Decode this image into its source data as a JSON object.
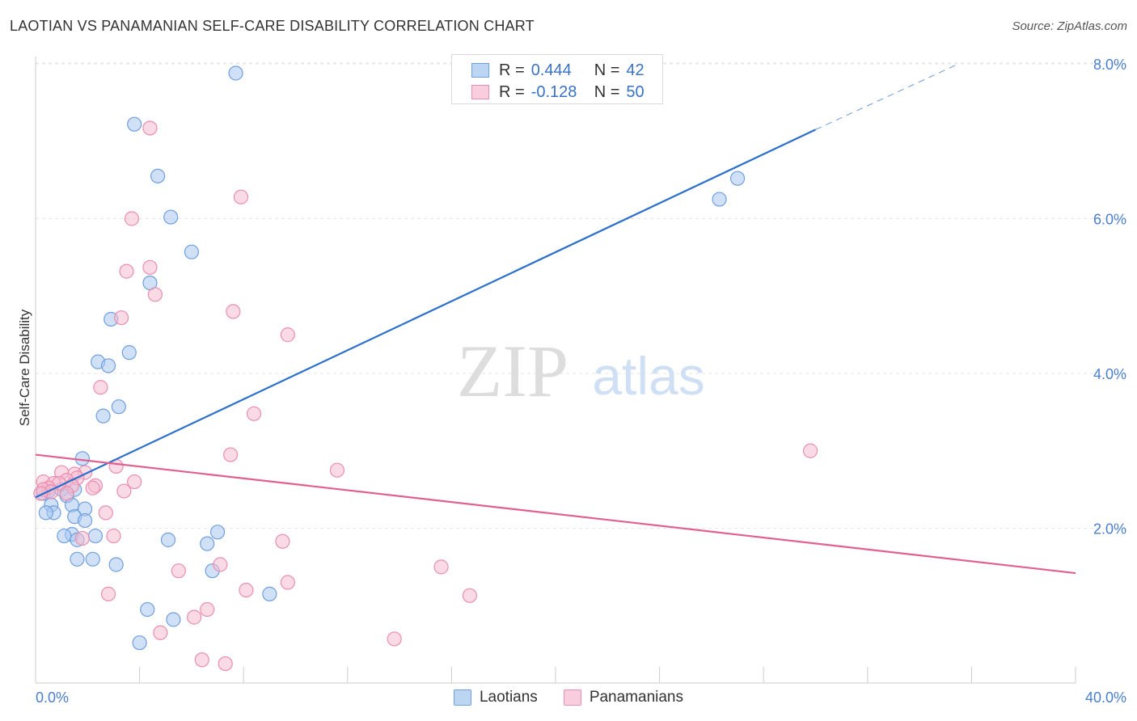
{
  "header": {
    "title": "LAOTIAN VS PANAMANIAN SELF-CARE DISABILITY CORRELATION CHART",
    "source": "Source: ZipAtlas.com"
  },
  "watermark": {
    "zip": "ZIP",
    "atlas": "atlas"
  },
  "colors": {
    "blue_fill": "#a9c8f0",
    "blue_stroke": "#6f9fe0",
    "blue_line": "#2a6fcc",
    "pink_fill": "#f6bcd0",
    "pink_stroke": "#eb8db0",
    "pink_line": "#e0608f",
    "axis_label": "#4a7fcf",
    "grid": "#e6e6e6"
  },
  "legend_top": [
    {
      "r_key": "R =",
      "r_value": "0.444",
      "n_key": "N =",
      "n_value": "42"
    },
    {
      "r_key": "R =",
      "r_value": "-0.128",
      "n_key": "N =",
      "n_value": "50"
    }
  ],
  "chart_data": {
    "type": "scatter",
    "title": "LAOTIAN VS PANAMANIAN SELF-CARE DISABILITY CORRELATION CHART",
    "xlabel": "",
    "ylabel": "Self-Care Disability",
    "xlim": [
      0,
      40
    ],
    "ylim": [
      0,
      8.2
    ],
    "x_ticks": [
      "0.0%",
      "40.0%"
    ],
    "y_ticks": [
      {
        "value": 2,
        "label": "2.0%"
      },
      {
        "value": 4,
        "label": "4.0%"
      },
      {
        "value": 6,
        "label": "6.0%"
      },
      {
        "value": 8,
        "label": "8.0%"
      }
    ],
    "grid": true,
    "legend_position": "bottom",
    "series": [
      {
        "name": "Laotians",
        "r": 0.444,
        "n": 42,
        "trend": {
          "x": [
            0,
            30
          ],
          "y": [
            2.4,
            7.15
          ],
          "dashed_to": [
            35.5,
            8.0
          ]
        },
        "points": [
          [
            7.7,
            7.88
          ],
          [
            3.8,
            7.22
          ],
          [
            4.7,
            6.55
          ],
          [
            5.2,
            6.02
          ],
          [
            6.0,
            5.57
          ],
          [
            4.4,
            5.17
          ],
          [
            2.9,
            4.7
          ],
          [
            3.6,
            4.27
          ],
          [
            2.4,
            4.15
          ],
          [
            2.8,
            4.1
          ],
          [
            3.2,
            3.57
          ],
          [
            2.6,
            3.45
          ],
          [
            1.8,
            2.9
          ],
          [
            1.0,
            2.5
          ],
          [
            1.5,
            2.5
          ],
          [
            0.3,
            2.45
          ],
          [
            0.5,
            2.48
          ],
          [
            1.2,
            2.42
          ],
          [
            0.6,
            2.3
          ],
          [
            1.4,
            2.3
          ],
          [
            0.7,
            2.2
          ],
          [
            0.4,
            2.2
          ],
          [
            1.9,
            2.25
          ],
          [
            1.5,
            2.15
          ],
          [
            1.9,
            2.1
          ],
          [
            1.4,
            1.92
          ],
          [
            1.1,
            1.9
          ],
          [
            1.6,
            1.85
          ],
          [
            2.3,
            1.9
          ],
          [
            5.1,
            1.85
          ],
          [
            6.6,
            1.8
          ],
          [
            7.0,
            1.95
          ],
          [
            1.6,
            1.6
          ],
          [
            2.2,
            1.6
          ],
          [
            3.1,
            1.53
          ],
          [
            6.8,
            1.45
          ],
          [
            9.0,
            1.15
          ],
          [
            4.3,
            0.95
          ],
          [
            5.3,
            0.82
          ],
          [
            4.0,
            0.52
          ],
          [
            26.3,
            6.25
          ],
          [
            27.0,
            6.52
          ]
        ]
      },
      {
        "name": "Panamanians",
        "r": -0.128,
        "n": 50,
        "trend": {
          "x": [
            0,
            40
          ],
          "y": [
            2.95,
            1.42
          ]
        },
        "points": [
          [
            4.4,
            7.17
          ],
          [
            7.9,
            6.28
          ],
          [
            3.7,
            6.0
          ],
          [
            4.4,
            5.37
          ],
          [
            3.5,
            5.32
          ],
          [
            4.6,
            5.02
          ],
          [
            7.6,
            4.8
          ],
          [
            3.3,
            4.72
          ],
          [
            9.7,
            4.5
          ],
          [
            2.5,
            3.82
          ],
          [
            8.4,
            3.48
          ],
          [
            29.8,
            3.0
          ],
          [
            7.5,
            2.95
          ],
          [
            3.1,
            2.8
          ],
          [
            11.6,
            2.75
          ],
          [
            1.9,
            2.72
          ],
          [
            1.0,
            2.72
          ],
          [
            1.5,
            2.7
          ],
          [
            1.6,
            2.65
          ],
          [
            1.2,
            2.62
          ],
          [
            3.8,
            2.6
          ],
          [
            0.3,
            2.6
          ],
          [
            0.7,
            2.58
          ],
          [
            0.9,
            2.58
          ],
          [
            1.4,
            2.55
          ],
          [
            2.3,
            2.55
          ],
          [
            0.5,
            2.52
          ],
          [
            2.2,
            2.52
          ],
          [
            0.3,
            2.5
          ],
          [
            3.4,
            2.48
          ],
          [
            0.6,
            2.47
          ],
          [
            0.2,
            2.45
          ],
          [
            1.2,
            2.45
          ],
          [
            2.7,
            2.2
          ],
          [
            1.8,
            1.87
          ],
          [
            3.0,
            1.9
          ],
          [
            9.5,
            1.83
          ],
          [
            7.1,
            1.53
          ],
          [
            15.6,
            1.5
          ],
          [
            5.5,
            1.45
          ],
          [
            9.7,
            1.3
          ],
          [
            8.1,
            1.2
          ],
          [
            2.8,
            1.15
          ],
          [
            16.7,
            1.13
          ],
          [
            6.6,
            0.95
          ],
          [
            6.1,
            0.85
          ],
          [
            13.8,
            0.57
          ],
          [
            4.8,
            0.65
          ],
          [
            6.4,
            0.3
          ],
          [
            7.3,
            0.25
          ]
        ]
      }
    ]
  },
  "legend_bottom": [
    {
      "label": "Laotians"
    },
    {
      "label": "Panamanians"
    }
  ]
}
